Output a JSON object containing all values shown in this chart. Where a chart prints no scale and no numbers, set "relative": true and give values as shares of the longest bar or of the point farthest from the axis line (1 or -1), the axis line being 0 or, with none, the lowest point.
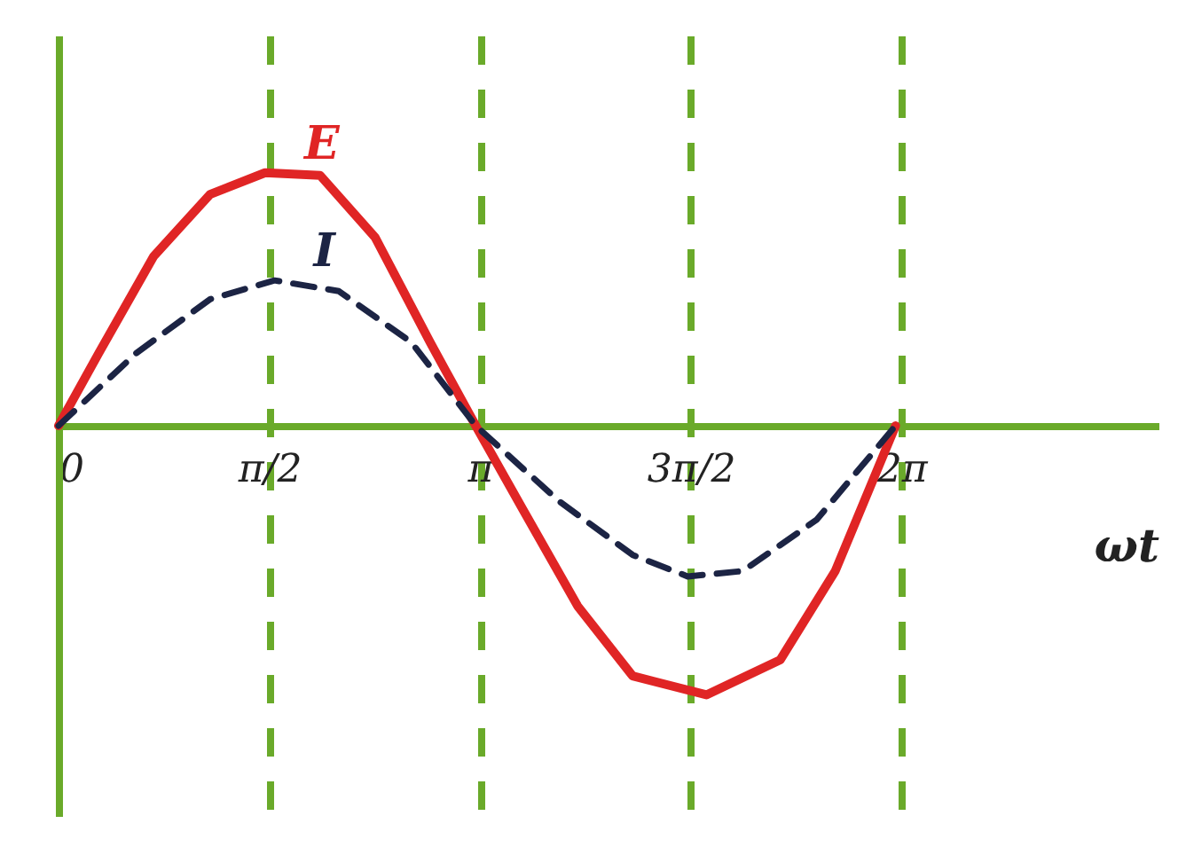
{
  "chart_data": {
    "type": "line",
    "relative": true,
    "xlabel": "ωt",
    "grid": "x",
    "marker": "none",
    "xlim": [
      0,
      8.2
    ],
    "xticks": [
      {
        "value": 0,
        "label": "0"
      },
      {
        "value": 1.5708,
        "label": "π/2"
      },
      {
        "value": 3.1416,
        "label": "π"
      },
      {
        "value": 4.7124,
        "label": "3π/2"
      },
      {
        "value": 6.2832,
        "label": "2π"
      }
    ],
    "series": [
      {
        "name": "E",
        "color": "#e02525",
        "line_style": "solid",
        "x": [
          0,
          0.3,
          0.71,
          1.13,
          1.54,
          1.95,
          2.36,
          2.77,
          3.11,
          3.46,
          3.87,
          4.28,
          4.83,
          5.38,
          5.79,
          6.24
        ],
        "values": [
          0,
          0.27,
          0.63,
          0.86,
          0.94,
          0.93,
          0.7,
          0.31,
          0,
          -0.31,
          -0.67,
          -0.93,
          -1,
          -0.87,
          -0.54,
          0
        ]
      },
      {
        "name": "I",
        "color": "#1c2444",
        "line_style": "dashed",
        "x": [
          0,
          0.58,
          1.13,
          1.61,
          2.09,
          2.63,
          3.11,
          3.73,
          4.28,
          4.69,
          5.1,
          5.65,
          6.24
        ],
        "values": [
          0,
          0.27,
          0.47,
          0.54,
          0.5,
          0.31,
          0,
          -0.28,
          -0.48,
          -0.56,
          -0.54,
          -0.35,
          0
        ]
      }
    ]
  }
}
